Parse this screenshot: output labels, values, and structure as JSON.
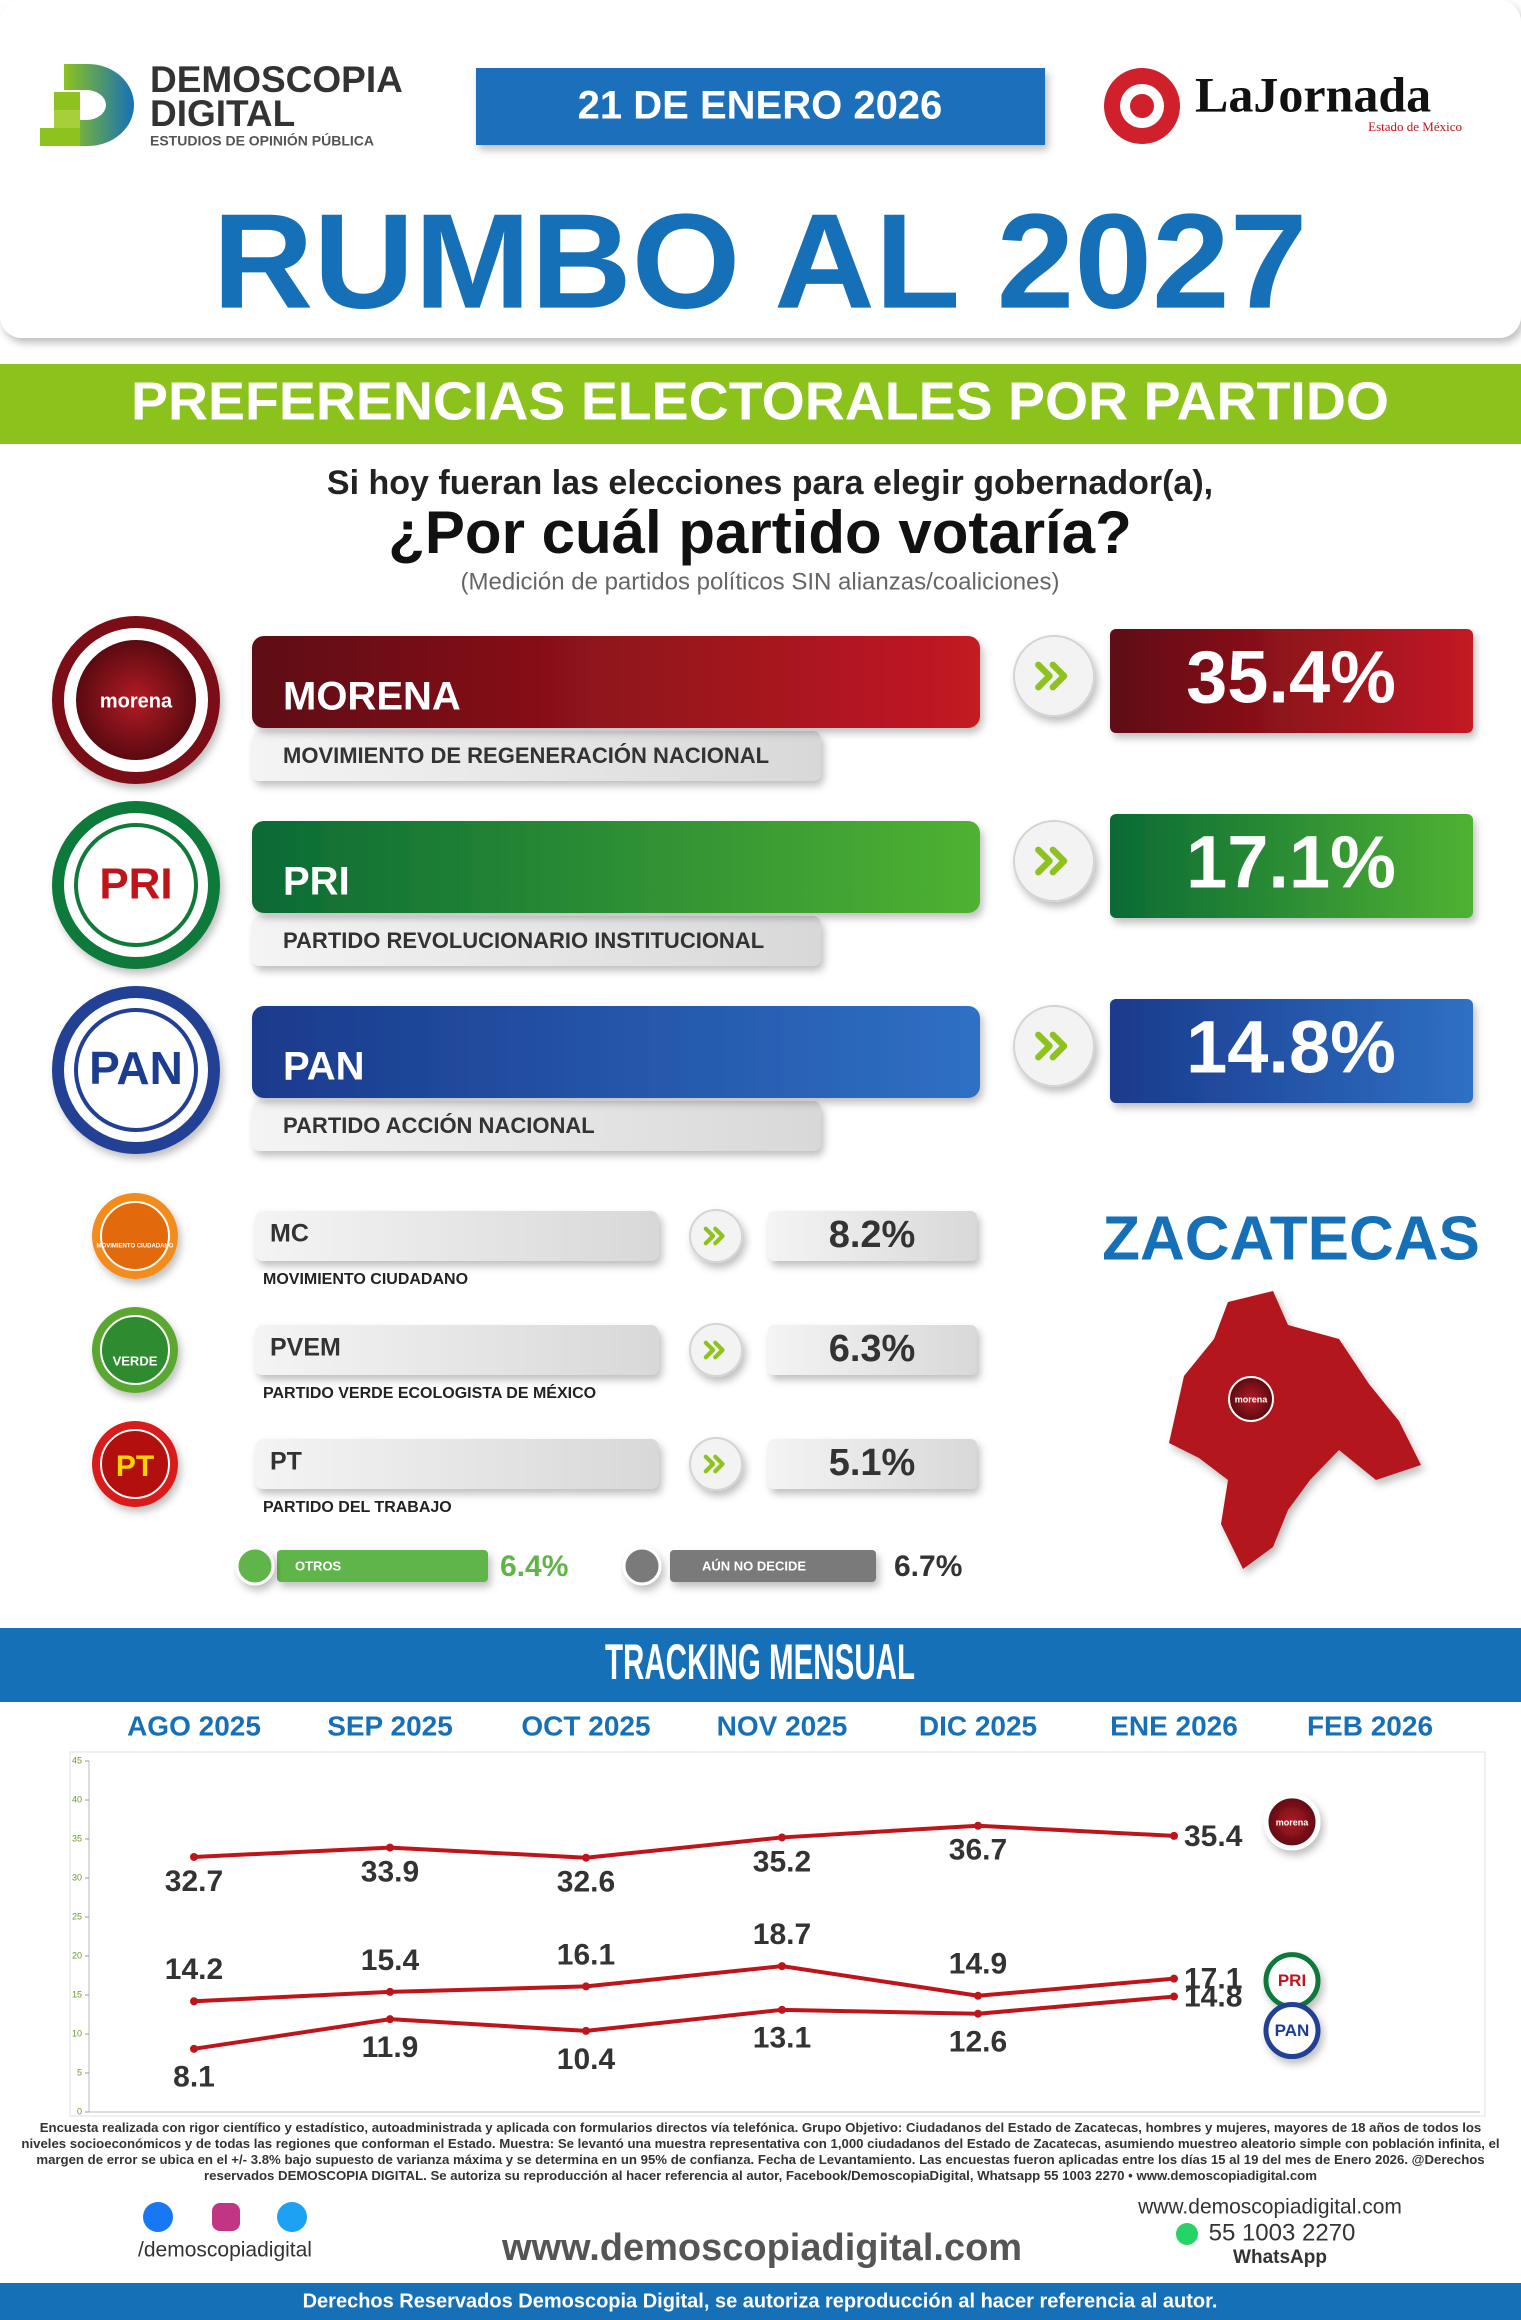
{
  "header": {
    "brand": "DEMOSCOPIA",
    "brand_line2": "DIGITAL",
    "brand_sub": "ESTUDIOS DE OPINIÓN PÚBLICA",
    "date": "21 DE ENERO 2026",
    "partner": "LaJornada",
    "partner_sub": "Estado de México",
    "title": "RUMBO AL 2027",
    "section": "PREFERENCIAS ELECTORALES POR PARTIDO"
  },
  "question": {
    "lead": "Si hoy fueran las elecciones para elegir gobernador(a),",
    "main": "¿Por cuál partido votaría?",
    "note": "(Medición de partidos políticos SIN alianzas/coaliciones)"
  },
  "major_parties": [
    {
      "logo": "morena",
      "name": "MORENA",
      "full_name": "MOVIMIENTO DE REGENERACIÓN NACIONAL",
      "result": "35.4%"
    },
    {
      "logo": "PRI",
      "name": "PRI",
      "full_name": "PARTIDO REVOLUCIONARIO INSTITUCIONAL",
      "result": "17.1%"
    },
    {
      "logo": "PAN",
      "name": "PAN",
      "full_name": "PARTIDO ACCIÓN NACIONAL",
      "result": "14.8%"
    }
  ],
  "minor_parties": [
    {
      "logo": "MOVIMIENTO CIUDADANO",
      "name": "MC",
      "full_name": "MOVIMIENTO CIUDADANO",
      "result": "8.2%"
    },
    {
      "logo": "VERDE",
      "name": "PVEM",
      "full_name": "PARTIDO VERDE ECOLOGISTA DE MÉXICO",
      "result": "6.3%"
    },
    {
      "logo": "PT",
      "name": "PT",
      "full_name": "PARTIDO DEL TRABAJO",
      "result": "5.1%"
    }
  ],
  "others": [
    {
      "label": "OTROS",
      "result": "6.4%"
    },
    {
      "label": "AÚN NO DECIDE",
      "result": "6.7%"
    }
  ],
  "state": {
    "name": "ZACATECAS",
    "winner_logo": "morena"
  },
  "chart_data": {
    "type": "line",
    "title": "TRACKING MENSUAL",
    "categories": [
      "AGO 2025",
      "SEP 2025",
      "OCT 2025",
      "NOV 2025",
      "DIC 2025",
      "ENE 2026",
      "FEB 2026"
    ],
    "series": [
      {
        "name": "morena",
        "color": "#c0141b",
        "values": [
          32.7,
          33.9,
          32.6,
          35.2,
          36.7,
          35.4,
          null
        ]
      },
      {
        "name": "PRI",
        "color": "#c0141b",
        "values": [
          14.2,
          15.4,
          16.1,
          18.7,
          14.9,
          17.1,
          null
        ]
      },
      {
        "name": "PAN",
        "color": "#c0141b",
        "values": [
          8.1,
          11.9,
          10.4,
          13.1,
          12.6,
          14.8,
          null
        ]
      }
    ],
    "ylim": [
      0,
      45
    ],
    "yticks": [
      0,
      5,
      10,
      15,
      20,
      25,
      30,
      35,
      40,
      45
    ],
    "grid": false
  },
  "footer": {
    "methodology": "Encuesta realizada con rigor científico y estadístico, autoadministrada y aplicada con formularios directos vía telefónica. Grupo Objetivo: Ciudadanos del Estado de Zacatecas, hombres y mujeres, mayores de 18 años de todos los niveles socioeconómicos y de todas las regiones que conforman el Estado. Muestra: Se levantó una muestra representativa con 1,000 ciudadanos del Estado de Zacatecas, asumiendo muestreo aleatorio simple con población infinita, el margen de error se ubica en el +/- 3.8% bajo supuesto de varianza máxima y se determina en un 95% de confianza. Fecha de Levantamiento. Las encuestas fueron aplicadas entre los días 15 al 19 del mes de Enero 2026. @Derechos reservados DEMOSCOPIA DIGITAL. Se autoriza su reproducción al hacer referencia al autor, Facebook/DemoscopiaDigital, Whatsapp 55 1003 2270 • www.demoscopiadigital.com",
    "social_handle": "/demoscopiadigital",
    "website": "www.demoscopiadigital.com",
    "contact_website": "www.demoscopiadigital.com",
    "phone": "55 1003 2270",
    "phone_label": "WhatsApp",
    "rights": "Derechos Reservados Demoscopia Digital, se autoriza reproducción al hacer referencia al autor."
  }
}
